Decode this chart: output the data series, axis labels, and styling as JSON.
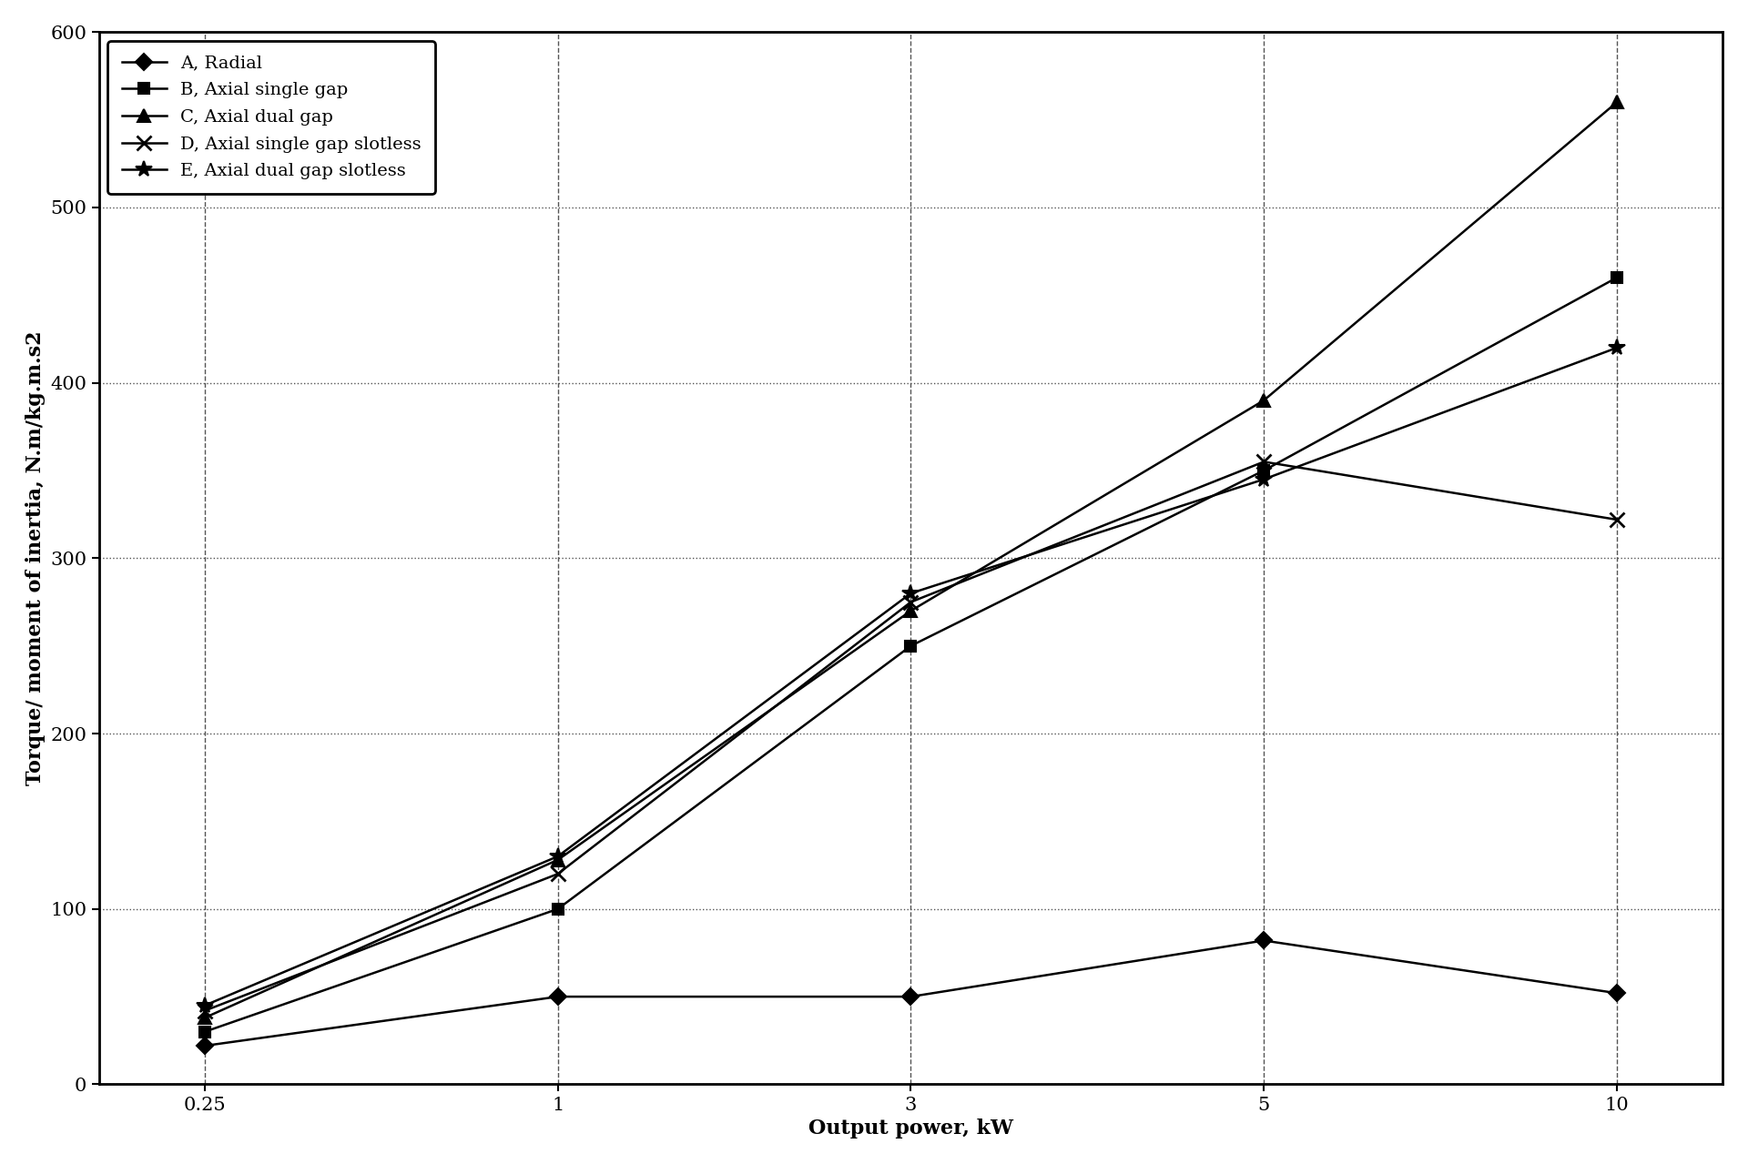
{
  "x_values": [
    0.25,
    1,
    3,
    5,
    10
  ],
  "x_ticks_labels": [
    "0.25",
    "1",
    "3",
    "5",
    "10"
  ],
  "series": [
    {
      "label": "A, Radial",
      "y": [
        22,
        50,
        50,
        82,
        52
      ],
      "marker": "D",
      "markersize": 9,
      "color": "#000000",
      "linewidth": 1.8,
      "markerfacecolor": "#000000"
    },
    {
      "label": "B, Axial single gap",
      "y": [
        30,
        100,
        250,
        350,
        460
      ],
      "marker": "s",
      "markersize": 9,
      "color": "#000000",
      "linewidth": 1.8,
      "markerfacecolor": "#000000"
    },
    {
      "label": "C, Axial dual gap",
      "y": [
        38,
        128,
        270,
        390,
        560
      ],
      "marker": "^",
      "markersize": 10,
      "color": "#000000",
      "linewidth": 1.8,
      "markerfacecolor": "#000000"
    },
    {
      "label": "D, Axial single gap slotless",
      "y": [
        42,
        120,
        275,
        355,
        322
      ],
      "marker": "x",
      "markersize": 11,
      "color": "#000000",
      "linewidth": 1.8,
      "markerfacecolor": "#000000",
      "markeredgewidth": 2.0
    },
    {
      "label": "E, Axial dual gap slotless",
      "y": [
        45,
        130,
        280,
        345,
        420
      ],
      "marker": "*",
      "markersize": 13,
      "color": "#000000",
      "linewidth": 1.8,
      "markerfacecolor": "#000000"
    }
  ],
  "xlabel": "Output power, kW",
  "ylabel": "Torque/ moment of inertia, N.m/kg.m.s2",
  "ylim": [
    0,
    600
  ],
  "yticks": [
    0,
    100,
    200,
    300,
    400,
    500,
    600
  ],
  "legend_loc": "upper left",
  "label_fontsize": 16,
  "tick_fontsize": 15,
  "legend_fontsize": 14,
  "figure_facecolor": "#ffffff",
  "axes_facecolor": "#ffffff",
  "hgrid_linestyle": ":",
  "vgrid_linestyle": "--",
  "grid_color": "#555555"
}
